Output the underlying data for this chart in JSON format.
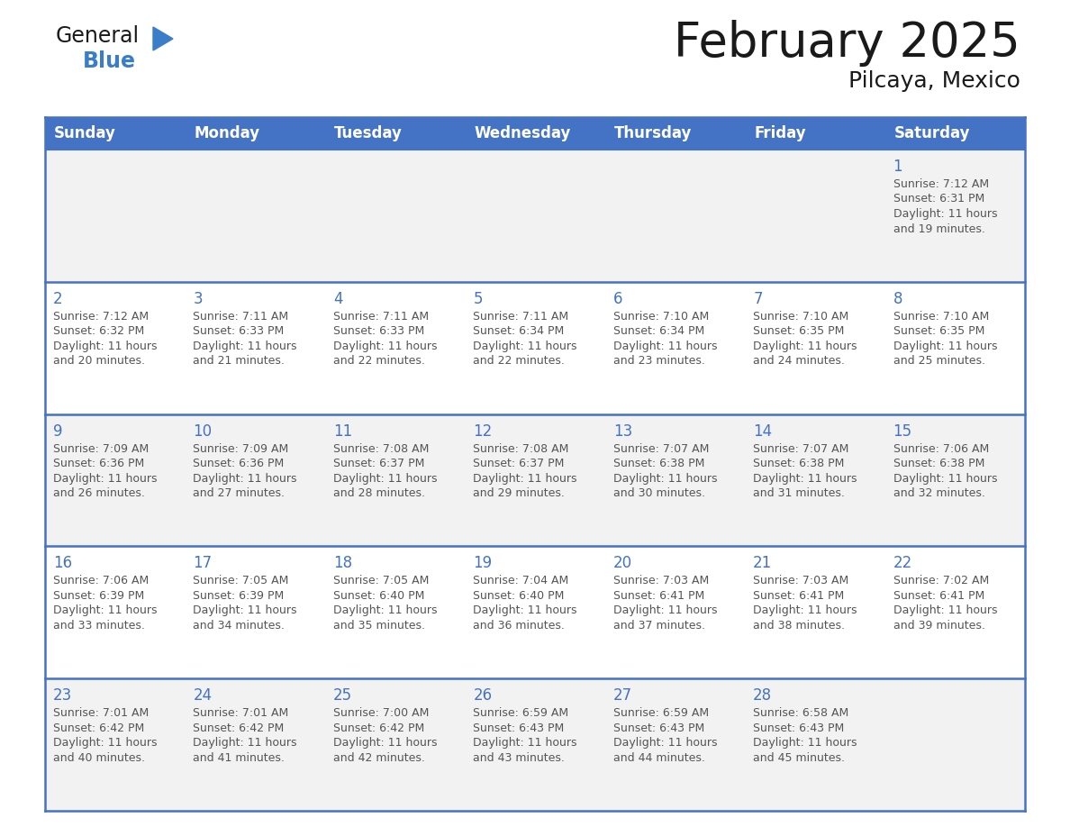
{
  "title": "February 2025",
  "subtitle": "Pilcaya, Mexico",
  "header_bg": "#4472C4",
  "header_text": "#FFFFFF",
  "header_days": [
    "Sunday",
    "Monday",
    "Tuesday",
    "Wednesday",
    "Thursday",
    "Friday",
    "Saturday"
  ],
  "row_bg_odd": "#F2F2F2",
  "row_bg_even": "#FFFFFF",
  "border_color": "#4472C4",
  "day_number_color": "#4472C4",
  "text_color": "#555555",
  "title_color": "#1a1a1a",
  "logo_general_color": "#1a1a1a",
  "logo_blue_color": "#3a7dc9",
  "calendar_data": [
    [
      null,
      null,
      null,
      null,
      null,
      null,
      {
        "day": 1,
        "sunrise": "7:12 AM",
        "sunset": "6:31 PM",
        "daylight": "11 hours and 19 minutes."
      }
    ],
    [
      {
        "day": 2,
        "sunrise": "7:12 AM",
        "sunset": "6:32 PM",
        "daylight": "11 hours and 20 minutes."
      },
      {
        "day": 3,
        "sunrise": "7:11 AM",
        "sunset": "6:33 PM",
        "daylight": "11 hours and 21 minutes."
      },
      {
        "day": 4,
        "sunrise": "7:11 AM",
        "sunset": "6:33 PM",
        "daylight": "11 hours and 22 minutes."
      },
      {
        "day": 5,
        "sunrise": "7:11 AM",
        "sunset": "6:34 PM",
        "daylight": "11 hours and 22 minutes."
      },
      {
        "day": 6,
        "sunrise": "7:10 AM",
        "sunset": "6:34 PM",
        "daylight": "11 hours and 23 minutes."
      },
      {
        "day": 7,
        "sunrise": "7:10 AM",
        "sunset": "6:35 PM",
        "daylight": "11 hours and 24 minutes."
      },
      {
        "day": 8,
        "sunrise": "7:10 AM",
        "sunset": "6:35 PM",
        "daylight": "11 hours and 25 minutes."
      }
    ],
    [
      {
        "day": 9,
        "sunrise": "7:09 AM",
        "sunset": "6:36 PM",
        "daylight": "11 hours and 26 minutes."
      },
      {
        "day": 10,
        "sunrise": "7:09 AM",
        "sunset": "6:36 PM",
        "daylight": "11 hours and 27 minutes."
      },
      {
        "day": 11,
        "sunrise": "7:08 AM",
        "sunset": "6:37 PM",
        "daylight": "11 hours and 28 minutes."
      },
      {
        "day": 12,
        "sunrise": "7:08 AM",
        "sunset": "6:37 PM",
        "daylight": "11 hours and 29 minutes."
      },
      {
        "day": 13,
        "sunrise": "7:07 AM",
        "sunset": "6:38 PM",
        "daylight": "11 hours and 30 minutes."
      },
      {
        "day": 14,
        "sunrise": "7:07 AM",
        "sunset": "6:38 PM",
        "daylight": "11 hours and 31 minutes."
      },
      {
        "day": 15,
        "sunrise": "7:06 AM",
        "sunset": "6:38 PM",
        "daylight": "11 hours and 32 minutes."
      }
    ],
    [
      {
        "day": 16,
        "sunrise": "7:06 AM",
        "sunset": "6:39 PM",
        "daylight": "11 hours and 33 minutes."
      },
      {
        "day": 17,
        "sunrise": "7:05 AM",
        "sunset": "6:39 PM",
        "daylight": "11 hours and 34 minutes."
      },
      {
        "day": 18,
        "sunrise": "7:05 AM",
        "sunset": "6:40 PM",
        "daylight": "11 hours and 35 minutes."
      },
      {
        "day": 19,
        "sunrise": "7:04 AM",
        "sunset": "6:40 PM",
        "daylight": "11 hours and 36 minutes."
      },
      {
        "day": 20,
        "sunrise": "7:03 AM",
        "sunset": "6:41 PM",
        "daylight": "11 hours and 37 minutes."
      },
      {
        "day": 21,
        "sunrise": "7:03 AM",
        "sunset": "6:41 PM",
        "daylight": "11 hours and 38 minutes."
      },
      {
        "day": 22,
        "sunrise": "7:02 AM",
        "sunset": "6:41 PM",
        "daylight": "11 hours and 39 minutes."
      }
    ],
    [
      {
        "day": 23,
        "sunrise": "7:01 AM",
        "sunset": "6:42 PM",
        "daylight": "11 hours and 40 minutes."
      },
      {
        "day": 24,
        "sunrise": "7:01 AM",
        "sunset": "6:42 PM",
        "daylight": "11 hours and 41 minutes."
      },
      {
        "day": 25,
        "sunrise": "7:00 AM",
        "sunset": "6:42 PM",
        "daylight": "11 hours and 42 minutes."
      },
      {
        "day": 26,
        "sunrise": "6:59 AM",
        "sunset": "6:43 PM",
        "daylight": "11 hours and 43 minutes."
      },
      {
        "day": 27,
        "sunrise": "6:59 AM",
        "sunset": "6:43 PM",
        "daylight": "11 hours and 44 minutes."
      },
      {
        "day": 28,
        "sunrise": "6:58 AM",
        "sunset": "6:43 PM",
        "daylight": "11 hours and 45 minutes."
      },
      null
    ]
  ]
}
